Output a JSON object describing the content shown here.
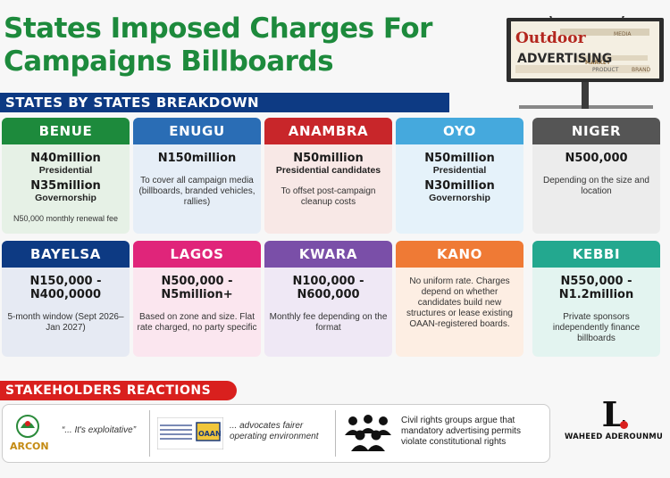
{
  "title": {
    "line1": "States Imposed Charges For",
    "line2": "Campaigns Billboards"
  },
  "billboard": {
    "line1": "Outdoor",
    "line2": "ADVERTISING",
    "cloud_words": [
      "MARKET",
      "PRODUCT",
      "MEDIA",
      "BRAND"
    ]
  },
  "section_title": "STATES BY STATES BREAKDOWN",
  "states": [
    {
      "name": "BENUE",
      "color": "#1d8a3c",
      "bg": "#e6f1e6",
      "lines": [
        {
          "text": "N40million",
          "style": "big"
        },
        {
          "text": "Presidential",
          "style": "med"
        },
        {
          "text": "N35million",
          "style": "big"
        },
        {
          "text": "Governorship",
          "style": "med"
        },
        {
          "text": "N50,000 monthly renewal fee",
          "style": "tiny"
        }
      ]
    },
    {
      "name": "ENUGU",
      "color": "#2a6db5",
      "bg": "#e6eef7",
      "lines": [
        {
          "text": "N150million",
          "style": "big"
        },
        {
          "text": "To cover all campaign media (billboards, branded vehicles, rallies)",
          "style": "small"
        }
      ]
    },
    {
      "name": "ANAMBRA",
      "color": "#c8262a",
      "bg": "#f8e8e6",
      "lines": [
        {
          "text": "N50million",
          "style": "big"
        },
        {
          "text": "Presidential candidates",
          "style": "med"
        },
        {
          "text": "To offset post-campaign cleanup costs",
          "style": "small"
        }
      ]
    },
    {
      "name": "OYO",
      "color": "#45a9dd",
      "bg": "#e5f2fa",
      "lines": [
        {
          "text": "N50million",
          "style": "big"
        },
        {
          "text": "Presidential",
          "style": "med"
        },
        {
          "text": "N30million",
          "style": "big"
        },
        {
          "text": "Governorship",
          "style": "med"
        }
      ]
    },
    {
      "name": "NIGER",
      "color": "#555555",
      "bg": "#ececec",
      "lines": [
        {
          "text": "N500,000",
          "style": "big"
        },
        {
          "text": "Depending on the size and location",
          "style": "small"
        }
      ]
    },
    {
      "name": "BAYELSA",
      "color": "#0d3a83",
      "bg": "#e6eaf3",
      "lines": [
        {
          "text": "N150,000 - N400,0000",
          "style": "big"
        },
        {
          "text": "5-month window (Sept 2026–Jan 2027)",
          "style": "small"
        }
      ]
    },
    {
      "name": "LAGOS",
      "color": "#e0257a",
      "bg": "#fbe6ef",
      "lines": [
        {
          "text": "N500,000 - N5million+",
          "style": "big"
        },
        {
          "text": "Based on zone and size. Flat rate charged, no party specific",
          "style": "small"
        }
      ]
    },
    {
      "name": "KWARA",
      "color": "#7a4fa8",
      "bg": "#efe8f5",
      "lines": [
        {
          "text": "N100,000 - N600,000",
          "style": "big"
        },
        {
          "text": "Monthly fee depending on the format",
          "style": "small"
        }
      ]
    },
    {
      "name": "KANO",
      "color": "#ef7a35",
      "bg": "#fdeee3",
      "lines": [
        {
          "text": "No uniform rate. Charges depend on whether candidates build new structures or lease existing OAAN-registered boards.",
          "style": "small"
        }
      ]
    },
    {
      "name": "KEBBI",
      "color": "#23a88f",
      "bg": "#e3f4f0",
      "lines": [
        {
          "text": "N550,000 - N1.2million",
          "style": "big"
        },
        {
          "text": "Private sponsors independently finance billboards",
          "style": "small"
        }
      ]
    }
  ],
  "stakeholders": {
    "title": "STAKEHOLDERS REACTIONS",
    "arcon_logo": "ARCON",
    "oaan_logo": "OAAN",
    "arcon_quote": "“... It's exploitative”",
    "oaan_quote": "... advocates fairer operating environment",
    "civil_quote": "Civil rights groups argue that mandatory advertising permits violate constitutional rights"
  },
  "brand": {
    "mark": "L",
    "name": "WAHEED ADEROUNMU"
  }
}
